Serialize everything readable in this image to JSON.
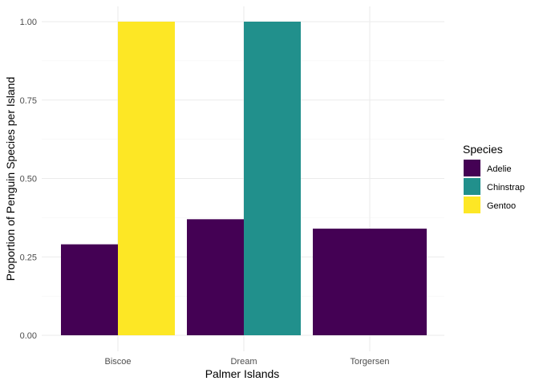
{
  "chart_data": {
    "type": "bar",
    "layout": "grouped",
    "categories": [
      "Biscoe",
      "Dream",
      "Torgersen"
    ],
    "series": [
      {
        "name": "Adelie",
        "color": "#440154",
        "values": [
          0.29,
          0.37,
          0.34
        ]
      },
      {
        "name": "Chinstrap",
        "color": "#21908C",
        "values": [
          null,
          1.0,
          null
        ]
      },
      {
        "name": "Gentoo",
        "color": "#FDE725",
        "values": [
          1.0,
          null,
          null
        ]
      }
    ],
    "xlabel": "Palmer Islands",
    "ylabel": "Proportion of Penguin Species per Island",
    "ylim": [
      0,
      1.0
    ],
    "yticks": [
      0.0,
      0.25,
      0.5,
      0.75,
      1.0
    ],
    "ytick_labels": [
      "0.00",
      "0.25",
      "0.50",
      "0.75",
      "1.00"
    ],
    "legend": {
      "title": "Species",
      "position": "right"
    },
    "grid": true
  }
}
